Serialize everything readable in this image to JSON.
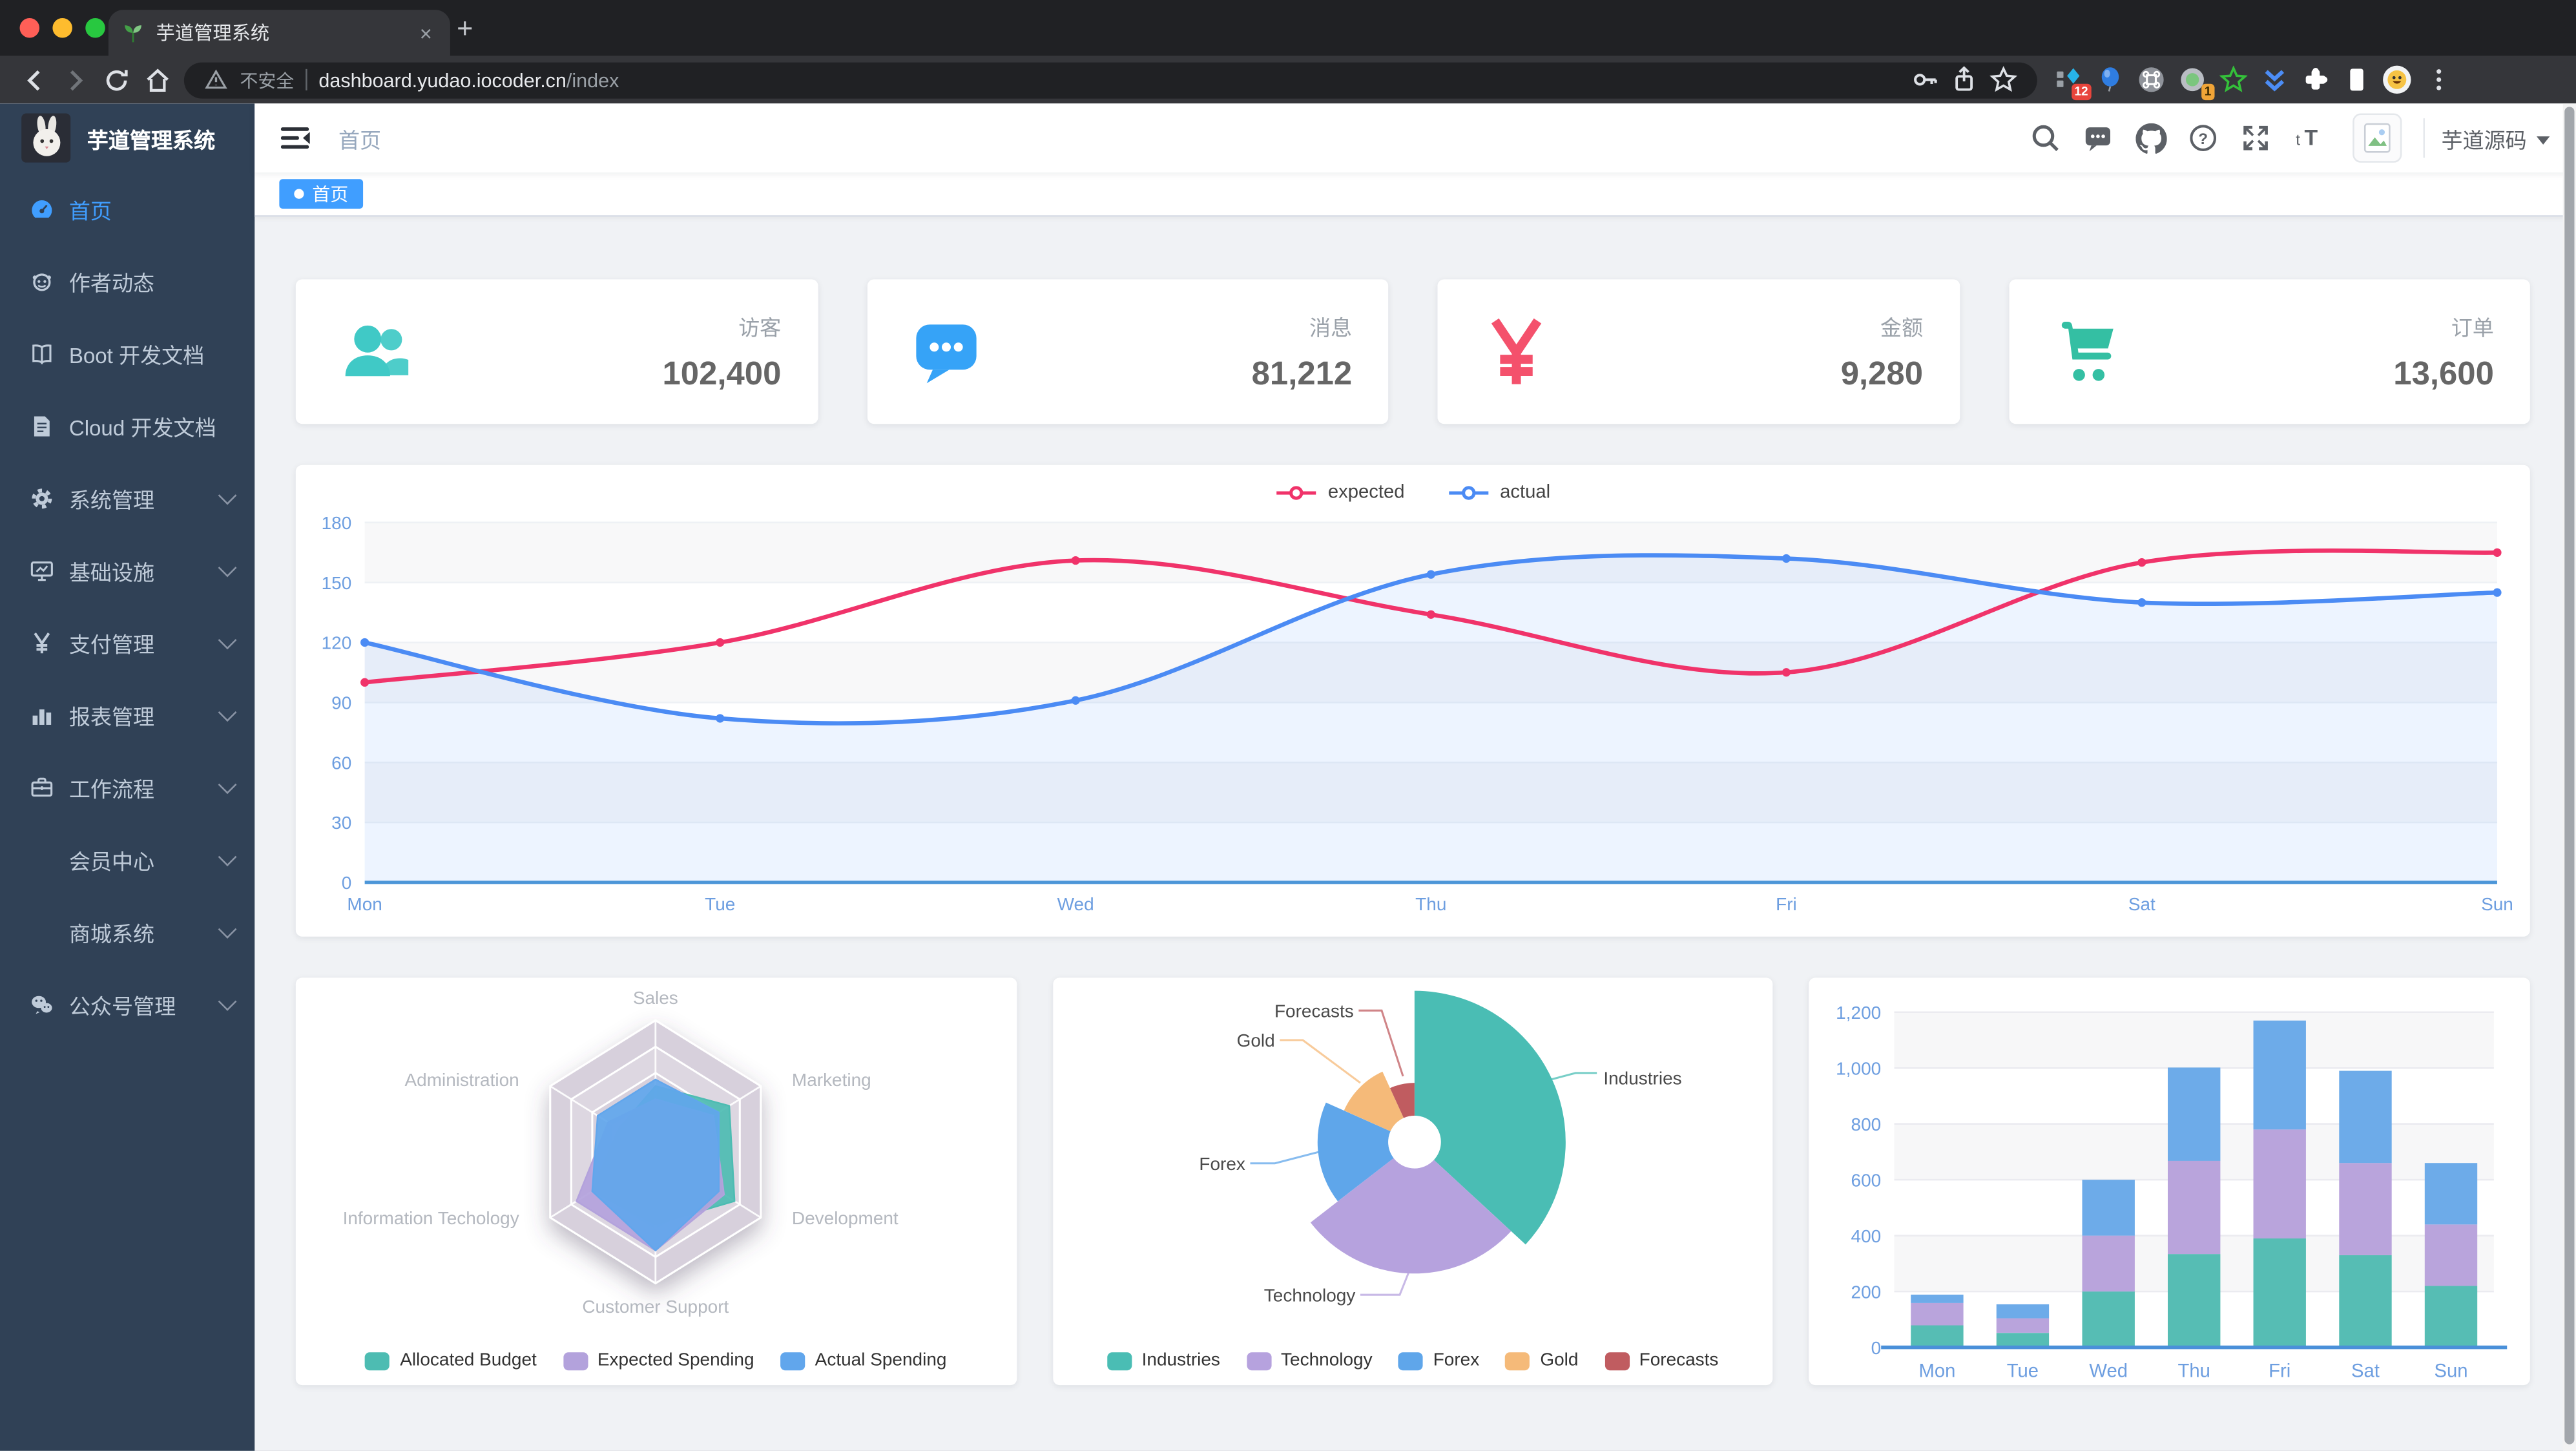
{
  "browser": {
    "tab_title": "芋道管理系统",
    "new_tab_label": "+",
    "close_tab_label": "x",
    "security_label": "不安全",
    "url_host": "dashboard.yudao.iocoder.cn",
    "url_path": "/index",
    "ext_badge_1": "12",
    "ext_badge_2": "1"
  },
  "sidebar": {
    "app_title": "芋道管理系统",
    "bg_color": "#304156",
    "active_color": "#409eff",
    "items": [
      {
        "id": "home",
        "label": "首页",
        "icon": "dashboard",
        "active": true
      },
      {
        "id": "author-dynamics",
        "label": "作者动态",
        "icon": "people"
      },
      {
        "id": "boot-dev-docs",
        "label": "Boot 开发文档",
        "icon": "book"
      },
      {
        "id": "cloud-dev-docs",
        "label": "Cloud 开发文档",
        "icon": "doc"
      },
      {
        "id": "system-management",
        "label": "系统管理",
        "icon": "gear",
        "expandable": true
      },
      {
        "id": "infrastructure",
        "label": "基础设施",
        "icon": "monitor",
        "expandable": true
      },
      {
        "id": "payment-management",
        "label": "支付管理",
        "icon": "yen",
        "expandable": true
      },
      {
        "id": "report-management",
        "label": "报表管理",
        "icon": "chart",
        "expandable": true
      },
      {
        "id": "workflow",
        "label": "工作流程",
        "icon": "briefcase",
        "expandable": true
      },
      {
        "id": "member-center",
        "label": "会员中心",
        "icon": "",
        "expandable": true
      },
      {
        "id": "mall-system",
        "label": "商城系统",
        "icon": "",
        "expandable": true
      },
      {
        "id": "official-account-management",
        "label": "公众号管理",
        "icon": "wechat",
        "expandable": true
      }
    ]
  },
  "navbar": {
    "breadcrumb": "首页",
    "username": "芋道源码"
  },
  "tags": [
    {
      "label": "首页",
      "active": true
    }
  ],
  "cards": [
    {
      "id": "visitors",
      "title": "访客",
      "value": "102,400",
      "color": "#40c9c6"
    },
    {
      "id": "messages",
      "title": "消息",
      "value": "81,212",
      "color": "#36a3f7"
    },
    {
      "id": "amount",
      "title": "金额",
      "value": "9,280",
      "color": "#f4516c"
    },
    {
      "id": "orders",
      "title": "订单",
      "value": "13,600",
      "color": "#34bfa3"
    }
  ],
  "chart_data": [
    {
      "type": "line",
      "x": [
        "Mon",
        "Tue",
        "Wed",
        "Thu",
        "Fri",
        "Sat",
        "Sun"
      ],
      "series": [
        {
          "name": "expected",
          "color": "#f0336a",
          "values": [
            100,
            120,
            161,
            134,
            105,
            160,
            165
          ]
        },
        {
          "name": "actual",
          "color": "#4b8bf4",
          "values": [
            120,
            82,
            91,
            154,
            162,
            140,
            145
          ],
          "area": true
        }
      ],
      "ylim": [
        0,
        180
      ],
      "yticks": [
        0,
        30,
        60,
        90,
        120,
        150,
        180
      ],
      "ytick_labels": [
        "0",
        "30",
        "60",
        "90",
        "120",
        "150",
        "180"
      ],
      "legend_position": "top",
      "grid": true
    },
    {
      "type": "radar",
      "indicators": [
        "Sales",
        "Administration",
        "Information Techology",
        "Customer Support",
        "Development",
        "Marketing"
      ],
      "series": [
        {
          "name": "Allocated Budget",
          "color": "#4dbcb2",
          "values_pct": [
            50,
            35,
            60,
            55,
            75,
            70
          ]
        },
        {
          "name": "Expected Spending",
          "color": "#b3a2dc",
          "values_pct": [
            40,
            45,
            75,
            75,
            65,
            55
          ]
        },
        {
          "name": "Actual Spending",
          "color": "#61a6ec",
          "values_pct": [
            55,
            55,
            60,
            75,
            60,
            60
          ]
        }
      ],
      "legend_position": "bottom"
    },
    {
      "type": "pie",
      "rose": true,
      "series": [
        {
          "name": "Industries",
          "value": 320,
          "color": "#4abdb4"
        },
        {
          "name": "Technology",
          "value": 240,
          "color": "#b6a2de"
        },
        {
          "name": "Forex",
          "value": 149,
          "color": "#5fa6ea"
        },
        {
          "name": "Gold",
          "value": 100,
          "color": "#f5ba79"
        },
        {
          "name": "Forecasts",
          "value": 59,
          "color": "#c05c60"
        }
      ],
      "start_angle": "top",
      "direction": "clockwise",
      "legend_position": "bottom"
    },
    {
      "type": "bar",
      "stacked": true,
      "categories": [
        "Mon",
        "Tue",
        "Wed",
        "Thu",
        "Fri",
        "Sat",
        "Sun"
      ],
      "series": [
        {
          "color": "#56bdb4",
          "values": [
            79,
            52,
            200,
            334,
            390,
            330,
            220
          ]
        },
        {
          "color": "#b9a4dc",
          "values": [
            80,
            52,
            200,
            334,
            390,
            330,
            220
          ]
        },
        {
          "color": "#6dabe9",
          "values": [
            30,
            50,
            200,
            334,
            390,
            330,
            220
          ]
        }
      ],
      "ylim": [
        0,
        1200
      ],
      "yticks": [
        0,
        200,
        400,
        600,
        800,
        1000,
        1200
      ],
      "ytick_labels": [
        "0",
        "200",
        "400",
        "600",
        "800",
        "1,000",
        "1,200"
      ],
      "grid": true
    }
  ]
}
